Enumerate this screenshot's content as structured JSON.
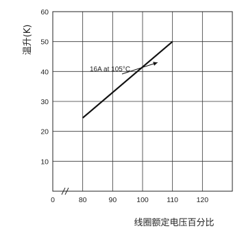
{
  "chart_data": {
    "type": "line",
    "title": "",
    "ylabel": "温升(K)",
    "xlabel": "线圈额定电压百分比",
    "xlim": [
      70,
      130
    ],
    "ylim": [
      0,
      60
    ],
    "x_ticks": [
      0,
      80,
      90,
      100,
      110,
      120
    ],
    "y_ticks": [
      10,
      20,
      30,
      40,
      50,
      60
    ],
    "grid": true,
    "axis_break": true,
    "series": [
      {
        "values": [
          [
            80,
            24.5
          ],
          [
            110,
            50
          ]
        ]
      }
    ],
    "annotation": {
      "text": "16A at 105°C",
      "x": 105,
      "y": 43
    }
  }
}
